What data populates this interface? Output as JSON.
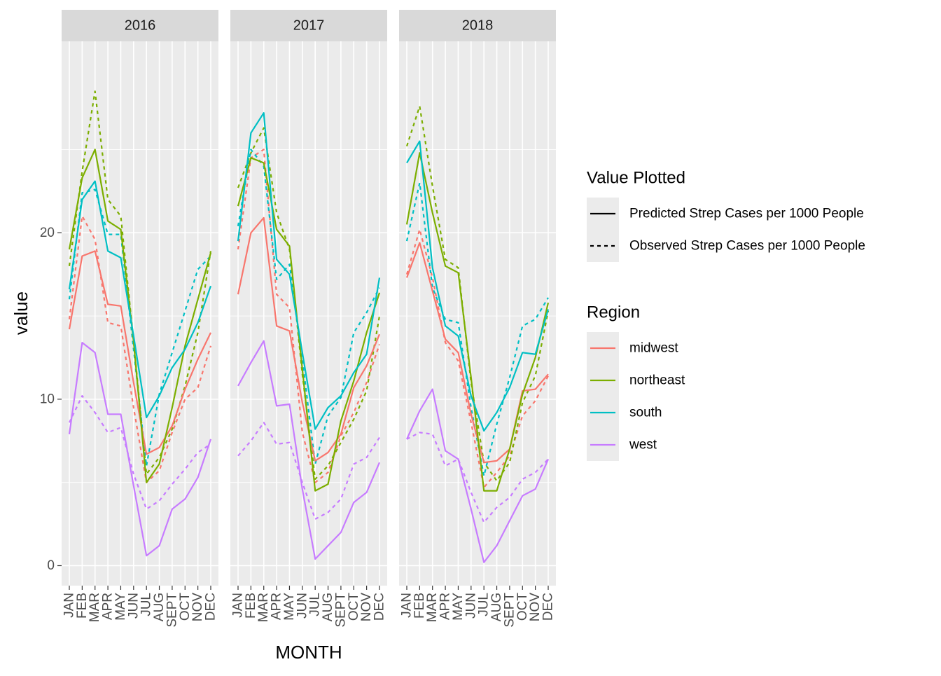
{
  "chart_data": {
    "type": "line",
    "facet_by": "year",
    "panels": [
      "2016",
      "2017",
      "2018"
    ],
    "xlabel": "MONTH",
    "ylabel": "value",
    "categories": [
      "JAN",
      "FEB",
      "MAR",
      "APR",
      "MAY",
      "JUN",
      "JUL",
      "AUG",
      "SEPT",
      "OCT",
      "NOV",
      "DEC"
    ],
    "ylim": [
      -1.2,
      31.5
    ],
    "yticks": [
      0,
      10,
      20
    ],
    "ytick_labels": [
      "0",
      "10",
      "20"
    ],
    "grid": true,
    "legend_position": "right",
    "legends": {
      "linetype": {
        "title": "Value Plotted",
        "entries": [
          {
            "label": "Predicted Strep Cases per 1000 People",
            "dash": "solid"
          },
          {
            "label": "Observed Strep Cases per 1000 People",
            "dash": "dashed"
          }
        ]
      },
      "color": {
        "title": "Region",
        "entries": [
          {
            "label": "midwest",
            "color": "#F8766D"
          },
          {
            "label": "northeast",
            "color": "#7CAE00"
          },
          {
            "label": "south",
            "color": "#00BFC4"
          },
          {
            "label": "west",
            "color": "#C77CFF"
          }
        ]
      }
    },
    "series": {
      "2016": {
        "predicted": {
          "midwest": [
            14.2,
            18.6,
            18.9,
            15.7,
            15.6,
            11.0,
            6.7,
            7.1,
            8.4,
            10.6,
            12.4,
            14.0
          ],
          "northeast": [
            19.0,
            23.3,
            25.0,
            20.7,
            20.2,
            13.5,
            5.0,
            6.1,
            9.5,
            13.2,
            16.0,
            18.8
          ],
          "south": [
            16.6,
            22.0,
            23.1,
            18.9,
            18.5,
            13.8,
            8.9,
            10.2,
            11.9,
            13.0,
            14.6,
            16.8
          ],
          "west": [
            7.9,
            13.4,
            12.8,
            9.1,
            9.1,
            4.8,
            0.6,
            1.2,
            3.4,
            4.0,
            5.3,
            7.6
          ]
        },
        "observed": {
          "midwest": [
            14.8,
            21.0,
            19.6,
            14.6,
            14.4,
            9.5,
            5.0,
            5.7,
            8.0,
            10.0,
            10.7,
            13.2
          ],
          "northeast": [
            18.0,
            23.7,
            28.5,
            22.0,
            21.0,
            13.5,
            5.5,
            6.5,
            8.2,
            10.8,
            14.0,
            18.9
          ],
          "south": [
            16.0,
            22.4,
            22.6,
            19.9,
            19.9,
            13.0,
            6.0,
            10.3,
            12.8,
            15.3,
            17.8,
            18.6
          ],
          "west": [
            8.6,
            10.2,
            9.2,
            8.0,
            8.3,
            5.5,
            3.4,
            3.9,
            4.9,
            5.8,
            6.8,
            7.3
          ]
        }
      },
      "2017": {
        "predicted": {
          "midwest": [
            16.3,
            20.0,
            20.9,
            14.4,
            14.1,
            9.8,
            6.3,
            6.8,
            7.9,
            10.7,
            12.0,
            13.9
          ],
          "northeast": [
            21.6,
            24.5,
            24.2,
            20.2,
            19.2,
            11.8,
            4.5,
            4.9,
            8.7,
            11.1,
            14.0,
            16.4
          ],
          "south": [
            19.5,
            26.0,
            27.2,
            18.4,
            17.5,
            12.8,
            8.2,
            9.5,
            10.2,
            11.6,
            12.7,
            17.3
          ],
          "west": [
            10.8,
            12.2,
            13.5,
            9.6,
            9.7,
            4.6,
            0.4,
            1.2,
            2.0,
            3.8,
            4.4,
            6.2
          ]
        },
        "observed": {
          "midwest": [
            19.0,
            24.5,
            25.0,
            16.3,
            15.5,
            8.0,
            5.0,
            5.6,
            7.8,
            9.2,
            11.0,
            13.3
          ],
          "northeast": [
            22.7,
            24.8,
            26.3,
            21.2,
            19.0,
            11.5,
            5.2,
            6.0,
            7.4,
            8.8,
            10.5,
            15.0
          ],
          "south": [
            20.4,
            25.0,
            24.0,
            17.2,
            18.1,
            12.4,
            6.1,
            9.0,
            10.1,
            14.0,
            15.2,
            16.7
          ],
          "west": [
            6.6,
            7.5,
            8.6,
            7.3,
            7.4,
            5.0,
            2.8,
            3.2,
            4.0,
            6.1,
            6.5,
            7.7
          ]
        }
      },
      "2018": {
        "predicted": {
          "midwest": [
            17.3,
            19.4,
            16.5,
            13.6,
            12.8,
            9.1,
            6.2,
            6.3,
            7.0,
            10.5,
            10.6,
            11.5
          ],
          "northeast": [
            20.5,
            24.8,
            21.2,
            18.0,
            17.6,
            11.3,
            4.5,
            4.5,
            7.0,
            10.3,
            12.5,
            15.8
          ],
          "south": [
            24.2,
            25.5,
            17.9,
            14.4,
            13.8,
            10.2,
            8.1,
            9.2,
            10.7,
            12.8,
            12.7,
            15.4
          ],
          "west": [
            7.6,
            9.3,
            10.6,
            6.9,
            6.4,
            3.4,
            0.2,
            1.2,
            2.7,
            4.2,
            4.6,
            6.4
          ]
        },
        "observed": {
          "midwest": [
            17.5,
            20.2,
            17.3,
            13.4,
            12.3,
            8.6,
            4.7,
            5.6,
            6.6,
            9.0,
            9.9,
            11.4
          ],
          "northeast": [
            25.2,
            27.6,
            22.8,
            18.4,
            17.9,
            11.0,
            6.2,
            5.1,
            6.2,
            9.8,
            11.4,
            15.3
          ],
          "south": [
            19.5,
            23.0,
            16.7,
            14.8,
            14.6,
            9.5,
            5.4,
            8.5,
            11.3,
            14.4,
            14.8,
            16.1
          ],
          "west": [
            7.6,
            8.0,
            7.9,
            6.0,
            6.4,
            4.4,
            2.6,
            3.5,
            4.1,
            5.2,
            5.6,
            6.4
          ]
        }
      }
    }
  }
}
